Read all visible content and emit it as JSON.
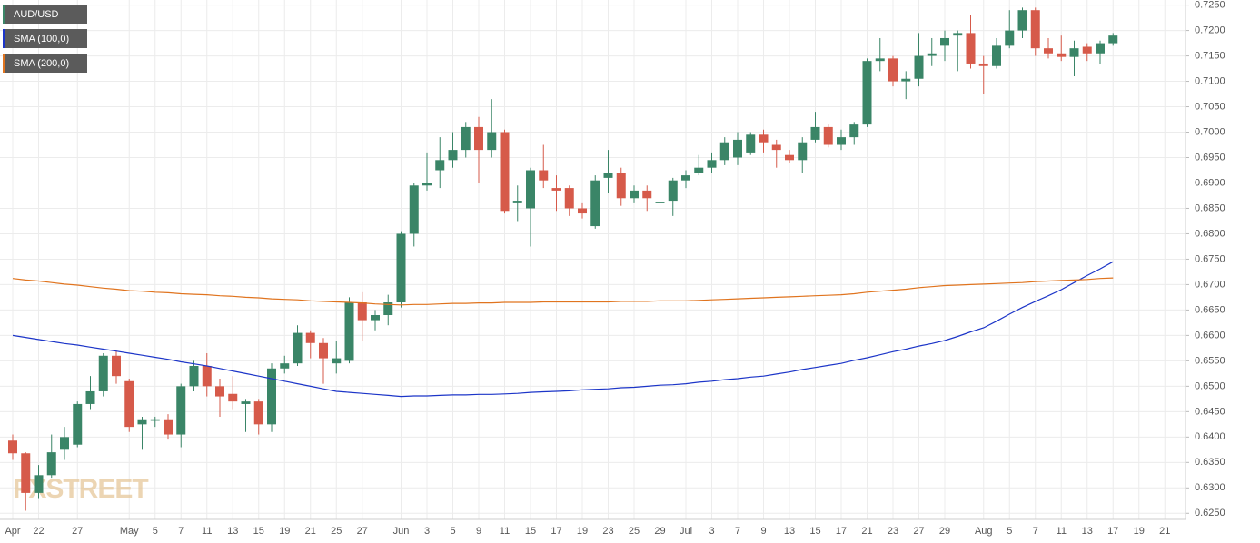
{
  "chart_data": {
    "type": "candlestick",
    "watermark": "FXSTREET",
    "categories": [
      "Apr",
      null,
      "22",
      null,
      null,
      "27",
      null,
      null,
      null,
      "May",
      null,
      "5",
      null,
      "7",
      null,
      "11",
      null,
      "13",
      null,
      "15",
      null,
      "19",
      null,
      "21",
      null,
      "25",
      null,
      "27",
      null,
      null,
      "Jun",
      null,
      "3",
      null,
      "5",
      null,
      "9",
      null,
      "11",
      null,
      "15",
      null,
      "17",
      null,
      "19",
      null,
      "23",
      null,
      "25",
      null,
      "29",
      null,
      "Jul",
      null,
      "3",
      null,
      "7",
      null,
      "9",
      null,
      "13",
      null,
      "15",
      null,
      "17",
      null,
      "21",
      null,
      "23",
      null,
      "27",
      null,
      "29",
      null,
      null,
      "Aug",
      null,
      "5",
      null,
      "7",
      null,
      "11",
      null,
      "13",
      null,
      "17",
      null,
      "19",
      null,
      "21"
    ],
    "series": [
      {
        "name": "AUD/USD",
        "color": "#3a8567",
        "down_color": "#d65a4a",
        "open": [
          0.6393,
          0.6368,
          0.629,
          0.6325,
          0.6375,
          0.6385,
          0.6465,
          0.649,
          0.656,
          0.651,
          0.6425,
          0.6432,
          0.6435,
          0.6405,
          0.65,
          0.654,
          0.65,
          0.6485,
          0.6465,
          0.647,
          0.6425,
          0.6535,
          0.6545,
          0.6605,
          0.6585,
          0.6545,
          0.655,
          0.6665,
          0.663,
          0.664,
          0.6665,
          0.68,
          0.6895,
          0.6925,
          0.6945,
          0.6965,
          0.701,
          0.6965,
          0.7,
          0.686,
          0.685,
          0.6925,
          0.689,
          0.689,
          0.685,
          0.6815,
          0.691,
          0.692,
          0.687,
          0.6885,
          0.686,
          0.6865,
          0.6905,
          0.692,
          0.693,
          0.6945,
          0.695,
          0.696,
          0.6995,
          0.6975,
          0.6955,
          0.6945,
          0.6985,
          0.701,
          0.6975,
          0.699,
          0.7015,
          0.714,
          0.7145,
          0.71,
          0.7105,
          0.715,
          0.717,
          0.719,
          0.7195,
          0.7135,
          0.713,
          0.717,
          0.72,
          0.724,
          0.7165,
          0.7155,
          0.7148,
          0.7168,
          0.7155,
          0.7175,
          null,
          null,
          null,
          null
        ],
        "high": [
          0.6405,
          0.637,
          0.6345,
          0.6405,
          0.642,
          0.647,
          0.652,
          0.6565,
          0.657,
          0.6515,
          0.644,
          0.644,
          0.6445,
          0.6505,
          0.655,
          0.6565,
          0.6515,
          0.652,
          0.6475,
          0.6475,
          0.6545,
          0.656,
          0.662,
          0.661,
          0.6595,
          0.659,
          0.6675,
          0.6685,
          0.665,
          0.668,
          0.6805,
          0.69,
          0.696,
          0.699,
          0.7,
          0.702,
          0.703,
          0.7065,
          0.7005,
          0.6895,
          0.693,
          0.6975,
          0.6915,
          0.6895,
          0.686,
          0.6915,
          0.6965,
          0.693,
          0.6895,
          0.6895,
          0.688,
          0.691,
          0.6925,
          0.6955,
          0.696,
          0.699,
          0.7,
          0.7,
          0.7005,
          0.6985,
          0.6965,
          0.699,
          0.704,
          0.7015,
          0.7005,
          0.702,
          0.7145,
          0.7185,
          0.715,
          0.712,
          0.7195,
          0.7185,
          0.72,
          0.72,
          0.723,
          0.715,
          0.7185,
          0.724,
          0.7245,
          0.7245,
          0.7185,
          0.719,
          0.718,
          0.7175,
          0.718,
          0.7195,
          null,
          null,
          null,
          null
        ],
        "low": [
          0.6355,
          0.6255,
          0.628,
          0.632,
          0.6355,
          0.638,
          0.6455,
          0.648,
          0.6505,
          0.641,
          0.6375,
          0.642,
          0.6395,
          0.638,
          0.649,
          0.648,
          0.644,
          0.6455,
          0.641,
          0.6405,
          0.641,
          0.6525,
          0.654,
          0.6555,
          0.6505,
          0.6525,
          0.6545,
          0.659,
          0.661,
          0.662,
          0.6655,
          0.6775,
          0.6885,
          0.689,
          0.693,
          0.695,
          0.69,
          0.695,
          0.684,
          0.6825,
          0.6775,
          0.689,
          0.6845,
          0.6835,
          0.683,
          0.681,
          0.688,
          0.6855,
          0.686,
          0.6845,
          0.6845,
          0.6835,
          0.689,
          0.6915,
          0.692,
          0.6935,
          0.6935,
          0.6955,
          0.696,
          0.693,
          0.694,
          0.692,
          0.698,
          0.697,
          0.6965,
          0.6975,
          0.701,
          0.712,
          0.709,
          0.7065,
          0.709,
          0.713,
          0.714,
          0.712,
          0.7125,
          0.7075,
          0.7125,
          0.7165,
          0.7185,
          0.715,
          0.7145,
          0.714,
          0.711,
          0.714,
          0.7135,
          0.717,
          null,
          null,
          null,
          null
        ],
        "close": [
          0.6368,
          0.629,
          0.6325,
          0.637,
          0.64,
          0.6465,
          0.649,
          0.656,
          0.652,
          0.642,
          0.6435,
          0.6435,
          0.6405,
          0.65,
          0.654,
          0.65,
          0.648,
          0.647,
          0.647,
          0.6425,
          0.6535,
          0.6545,
          0.6605,
          0.6585,
          0.6555,
          0.6555,
          0.6665,
          0.663,
          0.664,
          0.6665,
          0.68,
          0.6895,
          0.69,
          0.6945,
          0.6965,
          0.701,
          0.6965,
          0.7,
          0.6845,
          0.6865,
          0.6925,
          0.6905,
          0.6885,
          0.685,
          0.684,
          0.6905,
          0.692,
          0.687,
          0.6885,
          0.687,
          0.6863,
          0.6905,
          0.6915,
          0.693,
          0.6945,
          0.698,
          0.6985,
          0.6995,
          0.698,
          0.6965,
          0.6945,
          0.698,
          0.701,
          0.6975,
          0.699,
          0.7015,
          0.714,
          0.7145,
          0.71,
          0.7105,
          0.715,
          0.7155,
          0.7185,
          0.7195,
          0.7135,
          0.713,
          0.717,
          0.72,
          0.724,
          0.7165,
          0.7155,
          0.7148,
          0.7165,
          0.7155,
          0.7175,
          0.719,
          null,
          null,
          null,
          null
        ]
      }
    ],
    "lines": [
      {
        "name": "SMA (100,0)",
        "color": "#1c35c8",
        "values": [
          0.66,
          0.6596,
          0.6592,
          0.6588,
          0.6584,
          0.6581,
          0.6577,
          0.6573,
          0.6569,
          0.6565,
          0.6561,
          0.6557,
          0.6553,
          0.6548,
          0.6544,
          0.654,
          0.6535,
          0.653,
          0.6525,
          0.652,
          0.6515,
          0.651,
          0.6505,
          0.65,
          0.6495,
          0.649,
          0.6488,
          0.6486,
          0.6484,
          0.6482,
          0.648,
          0.6481,
          0.6481,
          0.6482,
          0.6483,
          0.6483,
          0.6484,
          0.6484,
          0.6485,
          0.6486,
          0.6488,
          0.6489,
          0.649,
          0.6491,
          0.6493,
          0.6494,
          0.6495,
          0.6497,
          0.6498,
          0.65,
          0.6502,
          0.6503,
          0.6505,
          0.6508,
          0.651,
          0.6513,
          0.6515,
          0.6518,
          0.652,
          0.6524,
          0.6528,
          0.6533,
          0.6537,
          0.6541,
          0.6545,
          0.6551,
          0.6556,
          0.6562,
          0.6568,
          0.6573,
          0.6579,
          0.6584,
          0.659,
          0.6598,
          0.6607,
          0.6615,
          0.6628,
          0.6642,
          0.6655,
          0.6667,
          0.6678,
          0.669,
          0.6704,
          0.6718,
          0.6731,
          0.6745,
          null,
          null,
          null,
          null
        ]
      },
      {
        "name": "SMA (200,0)",
        "color": "#e0741f",
        "values": [
          0.6712,
          0.6709,
          0.6707,
          0.6704,
          0.6701,
          0.6699,
          0.6696,
          0.6693,
          0.6691,
          0.6688,
          0.6687,
          0.6685,
          0.6684,
          0.6682,
          0.6681,
          0.668,
          0.6678,
          0.6677,
          0.6675,
          0.6674,
          0.6672,
          0.6671,
          0.667,
          0.6668,
          0.6667,
          0.6666,
          0.6665,
          0.6664,
          0.6662,
          0.6661,
          0.666,
          0.6661,
          0.6661,
          0.6662,
          0.6663,
          0.6663,
          0.6664,
          0.6664,
          0.6665,
          0.6665,
          0.6665,
          0.6666,
          0.6666,
          0.6666,
          0.6666,
          0.6666,
          0.6666,
          0.6667,
          0.6667,
          0.6667,
          0.6668,
          0.6668,
          0.6668,
          0.6669,
          0.667,
          0.6671,
          0.6672,
          0.6673,
          0.6674,
          0.6675,
          0.6676,
          0.6677,
          0.6678,
          0.6679,
          0.668,
          0.6682,
          0.6685,
          0.6687,
          0.6689,
          0.6691,
          0.6694,
          0.6696,
          0.6698,
          0.6699,
          0.67,
          0.6701,
          0.6702,
          0.6703,
          0.6704,
          0.6706,
          0.6707,
          0.6708,
          0.6709,
          0.671,
          0.6712,
          0.6713,
          null,
          null,
          null,
          null
        ]
      }
    ],
    "ylim": [
      0.6238,
      0.726
    ],
    "yticks": [
      {
        "value": 0.625,
        "label": "0.6250"
      },
      {
        "value": 0.63,
        "label": "0.6300"
      },
      {
        "value": 0.635,
        "label": "0.6350"
      },
      {
        "value": 0.64,
        "label": "0.6400"
      },
      {
        "value": 0.645,
        "label": "0.6450"
      },
      {
        "value": 0.65,
        "label": "0.6500"
      },
      {
        "value": 0.655,
        "label": "0.6550"
      },
      {
        "value": 0.66,
        "label": "0.6600"
      },
      {
        "value": 0.665,
        "label": "0.6650"
      },
      {
        "value": 0.67,
        "label": "0.6700"
      },
      {
        "value": 0.675,
        "label": "0.6750"
      },
      {
        "value": 0.68,
        "label": "0.6800"
      },
      {
        "value": 0.685,
        "label": "0.6850"
      },
      {
        "value": 0.69,
        "label": "0.6900"
      },
      {
        "value": 0.695,
        "label": "0.6950"
      },
      {
        "value": 0.7,
        "label": "0.7000"
      },
      {
        "value": 0.705,
        "label": "0.7050"
      },
      {
        "value": 0.71,
        "label": "0.7100"
      },
      {
        "value": 0.715,
        "label": "0.7150"
      },
      {
        "value": 0.72,
        "label": "0.7200"
      },
      {
        "value": 0.725,
        "label": "0.7250"
      }
    ],
    "grid": true
  }
}
